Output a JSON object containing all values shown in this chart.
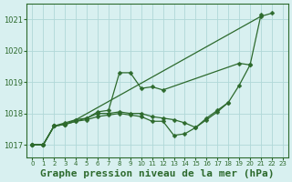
{
  "background_color": "#d8f0f0",
  "grid_color": "#b0d8d8",
  "line_color": "#2d6a2d",
  "marker_color": "#2d6a2d",
  "title": "Graphe pression niveau de la mer (hPa)",
  "title_fontsize": 8,
  "ylim": [
    1016.6,
    1021.5
  ],
  "xlim": [
    -0.5,
    23.5
  ],
  "yticks": [
    1017,
    1018,
    1019,
    1020,
    1021
  ],
  "xticks": [
    0,
    1,
    2,
    3,
    4,
    5,
    6,
    7,
    8,
    9,
    10,
    11,
    12,
    13,
    14,
    15,
    16,
    17,
    18,
    19,
    20,
    21,
    22,
    23
  ],
  "series": [
    {
      "comment": "top series - straight diagonal from 1017 at 0 to 1021.2 at 22",
      "x": [
        0,
        1,
        2,
        3,
        4,
        21,
        22
      ],
      "y": [
        1017.0,
        1017.0,
        1017.6,
        1017.65,
        1017.8,
        1021.1,
        1021.2
      ]
    },
    {
      "comment": "series with peak at hour 8-9 around 1019.3, ends ~hour 21",
      "x": [
        0,
        1,
        2,
        3,
        4,
        5,
        6,
        7,
        8,
        9,
        10,
        11,
        12,
        19,
        20,
        21
      ],
      "y": [
        1017.0,
        1017.0,
        1017.6,
        1017.7,
        1017.8,
        1017.85,
        1018.05,
        1018.1,
        1019.3,
        1019.3,
        1018.8,
        1018.85,
        1018.75,
        1019.6,
        1019.55,
        1021.15
      ]
    },
    {
      "comment": "middle series - goes through 1018 range, ends ~hour 20",
      "x": [
        0,
        1,
        2,
        3,
        4,
        5,
        6,
        7,
        8,
        9,
        10,
        11,
        12,
        13,
        14,
        15,
        16,
        17,
        18,
        19,
        20
      ],
      "y": [
        1017.0,
        1017.0,
        1017.6,
        1017.65,
        1017.75,
        1017.85,
        1018.0,
        1018.0,
        1018.05,
        1018.0,
        1018.0,
        1017.9,
        1017.85,
        1017.8,
        1017.7,
        1017.55,
        1017.85,
        1018.1,
        1018.35,
        1018.9,
        1019.55
      ]
    },
    {
      "comment": "bottom series that dips down to ~1017.3 at hour 14, ends ~hour 18",
      "x": [
        0,
        1,
        2,
        3,
        4,
        5,
        6,
        7,
        8,
        9,
        10,
        11,
        12,
        13,
        14,
        15,
        16,
        17,
        18
      ],
      "y": [
        1017.0,
        1017.0,
        1017.6,
        1017.65,
        1017.75,
        1017.8,
        1017.9,
        1017.95,
        1018.0,
        1017.95,
        1017.9,
        1017.75,
        1017.75,
        1017.3,
        1017.35,
        1017.55,
        1017.8,
        1018.05,
        1018.35
      ]
    }
  ]
}
